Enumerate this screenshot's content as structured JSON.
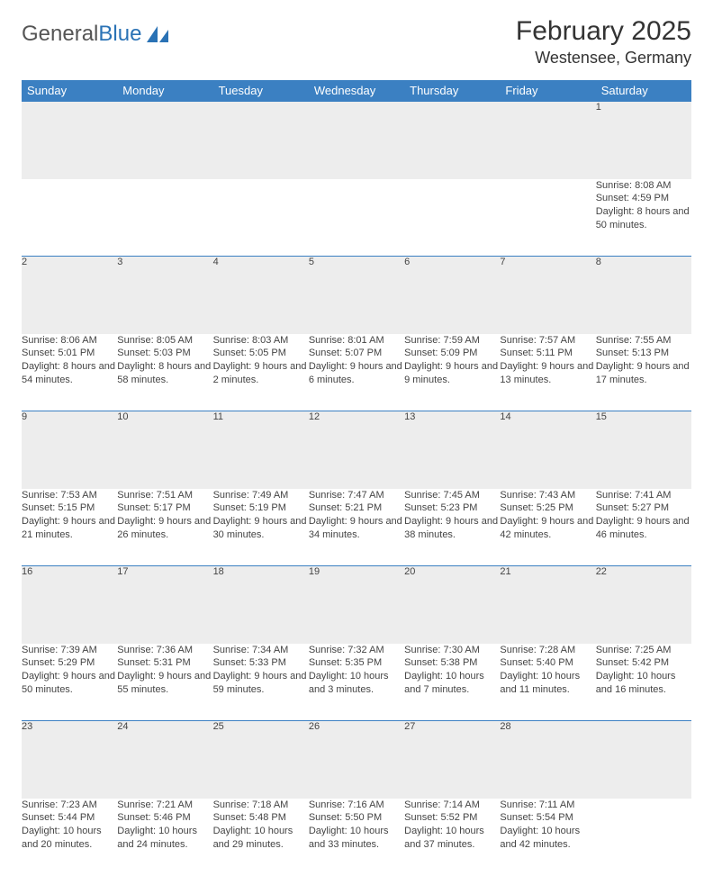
{
  "logo": {
    "text1": "General",
    "text2": "Blue"
  },
  "title": "February 2025",
  "location": "Westensee, Germany",
  "header_bg": "#3b80c2",
  "daynum_bg": "#ededed",
  "border_color": "#3b80c2",
  "days": [
    "Sunday",
    "Monday",
    "Tuesday",
    "Wednesday",
    "Thursday",
    "Friday",
    "Saturday"
  ],
  "weeks": [
    [
      null,
      null,
      null,
      null,
      null,
      null,
      {
        "n": "1",
        "sr": "Sunrise: 8:08 AM",
        "ss": "Sunset: 4:59 PM",
        "dl": "Daylight: 8 hours and 50 minutes."
      }
    ],
    [
      {
        "n": "2",
        "sr": "Sunrise: 8:06 AM",
        "ss": "Sunset: 5:01 PM",
        "dl": "Daylight: 8 hours and 54 minutes."
      },
      {
        "n": "3",
        "sr": "Sunrise: 8:05 AM",
        "ss": "Sunset: 5:03 PM",
        "dl": "Daylight: 8 hours and 58 minutes."
      },
      {
        "n": "4",
        "sr": "Sunrise: 8:03 AM",
        "ss": "Sunset: 5:05 PM",
        "dl": "Daylight: 9 hours and 2 minutes."
      },
      {
        "n": "5",
        "sr": "Sunrise: 8:01 AM",
        "ss": "Sunset: 5:07 PM",
        "dl": "Daylight: 9 hours and 6 minutes."
      },
      {
        "n": "6",
        "sr": "Sunrise: 7:59 AM",
        "ss": "Sunset: 5:09 PM",
        "dl": "Daylight: 9 hours and 9 minutes."
      },
      {
        "n": "7",
        "sr": "Sunrise: 7:57 AM",
        "ss": "Sunset: 5:11 PM",
        "dl": "Daylight: 9 hours and 13 minutes."
      },
      {
        "n": "8",
        "sr": "Sunrise: 7:55 AM",
        "ss": "Sunset: 5:13 PM",
        "dl": "Daylight: 9 hours and 17 minutes."
      }
    ],
    [
      {
        "n": "9",
        "sr": "Sunrise: 7:53 AM",
        "ss": "Sunset: 5:15 PM",
        "dl": "Daylight: 9 hours and 21 minutes."
      },
      {
        "n": "10",
        "sr": "Sunrise: 7:51 AM",
        "ss": "Sunset: 5:17 PM",
        "dl": "Daylight: 9 hours and 26 minutes."
      },
      {
        "n": "11",
        "sr": "Sunrise: 7:49 AM",
        "ss": "Sunset: 5:19 PM",
        "dl": "Daylight: 9 hours and 30 minutes."
      },
      {
        "n": "12",
        "sr": "Sunrise: 7:47 AM",
        "ss": "Sunset: 5:21 PM",
        "dl": "Daylight: 9 hours and 34 minutes."
      },
      {
        "n": "13",
        "sr": "Sunrise: 7:45 AM",
        "ss": "Sunset: 5:23 PM",
        "dl": "Daylight: 9 hours and 38 minutes."
      },
      {
        "n": "14",
        "sr": "Sunrise: 7:43 AM",
        "ss": "Sunset: 5:25 PM",
        "dl": "Daylight: 9 hours and 42 minutes."
      },
      {
        "n": "15",
        "sr": "Sunrise: 7:41 AM",
        "ss": "Sunset: 5:27 PM",
        "dl": "Daylight: 9 hours and 46 minutes."
      }
    ],
    [
      {
        "n": "16",
        "sr": "Sunrise: 7:39 AM",
        "ss": "Sunset: 5:29 PM",
        "dl": "Daylight: 9 hours and 50 minutes."
      },
      {
        "n": "17",
        "sr": "Sunrise: 7:36 AM",
        "ss": "Sunset: 5:31 PM",
        "dl": "Daylight: 9 hours and 55 minutes."
      },
      {
        "n": "18",
        "sr": "Sunrise: 7:34 AM",
        "ss": "Sunset: 5:33 PM",
        "dl": "Daylight: 9 hours and 59 minutes."
      },
      {
        "n": "19",
        "sr": "Sunrise: 7:32 AM",
        "ss": "Sunset: 5:35 PM",
        "dl": "Daylight: 10 hours and 3 minutes."
      },
      {
        "n": "20",
        "sr": "Sunrise: 7:30 AM",
        "ss": "Sunset: 5:38 PM",
        "dl": "Daylight: 10 hours and 7 minutes."
      },
      {
        "n": "21",
        "sr": "Sunrise: 7:28 AM",
        "ss": "Sunset: 5:40 PM",
        "dl": "Daylight: 10 hours and 11 minutes."
      },
      {
        "n": "22",
        "sr": "Sunrise: 7:25 AM",
        "ss": "Sunset: 5:42 PM",
        "dl": "Daylight: 10 hours and 16 minutes."
      }
    ],
    [
      {
        "n": "23",
        "sr": "Sunrise: 7:23 AM",
        "ss": "Sunset: 5:44 PM",
        "dl": "Daylight: 10 hours and 20 minutes."
      },
      {
        "n": "24",
        "sr": "Sunrise: 7:21 AM",
        "ss": "Sunset: 5:46 PM",
        "dl": "Daylight: 10 hours and 24 minutes."
      },
      {
        "n": "25",
        "sr": "Sunrise: 7:18 AM",
        "ss": "Sunset: 5:48 PM",
        "dl": "Daylight: 10 hours and 29 minutes."
      },
      {
        "n": "26",
        "sr": "Sunrise: 7:16 AM",
        "ss": "Sunset: 5:50 PM",
        "dl": "Daylight: 10 hours and 33 minutes."
      },
      {
        "n": "27",
        "sr": "Sunrise: 7:14 AM",
        "ss": "Sunset: 5:52 PM",
        "dl": "Daylight: 10 hours and 37 minutes."
      },
      {
        "n": "28",
        "sr": "Sunrise: 7:11 AM",
        "ss": "Sunset: 5:54 PM",
        "dl": "Daylight: 10 hours and 42 minutes."
      },
      null
    ]
  ]
}
